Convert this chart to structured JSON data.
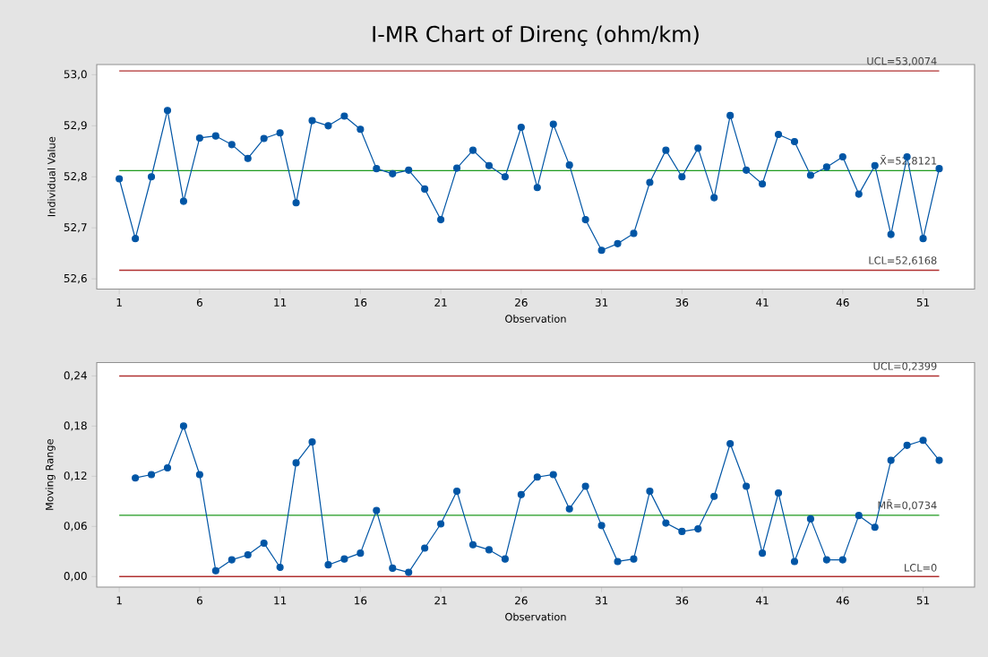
{
  "chart_data": [
    {
      "type": "line",
      "title": "I-MR Chart of Direnç (ohm/km)",
      "xlabel": "Observation",
      "ylabel": "Individual Value",
      "color": "#0055a5",
      "marker": "circle",
      "x": [
        1,
        2,
        3,
        4,
        5,
        6,
        7,
        8,
        9,
        10,
        11,
        12,
        13,
        14,
        15,
        16,
        17,
        18,
        19,
        20,
        21,
        22,
        23,
        24,
        25,
        26,
        27,
        28,
        29,
        30,
        31,
        32,
        33,
        34,
        35,
        36,
        37,
        38,
        39,
        40,
        41,
        42,
        43,
        44,
        45,
        46,
        47,
        48,
        49,
        50,
        51,
        52
      ],
      "values": [
        52.796,
        52.679,
        52.8,
        52.93,
        52.752,
        52.876,
        52.88,
        52.863,
        52.836,
        52.875,
        52.886,
        52.749,
        52.91,
        52.9,
        52.919,
        52.893,
        52.816,
        52.806,
        52.813,
        52.776,
        52.716,
        52.817,
        52.852,
        52.822,
        52.8,
        52.897,
        52.779,
        52.903,
        52.823,
        52.716,
        52.656,
        52.669,
        52.689,
        52.789,
        52.852,
        52.8,
        52.856,
        52.759,
        52.92,
        52.813,
        52.786,
        52.883,
        52.869,
        52.803,
        52.819,
        52.839,
        52.766,
        52.822,
        52.687,
        52.839,
        52.679,
        52.816
      ],
      "xlim": [
        -0.4,
        54.2
      ],
      "ylim": [
        52.58,
        53.02
      ],
      "xticks": [
        1,
        6,
        11,
        16,
        21,
        26,
        31,
        36,
        41,
        46,
        51
      ],
      "yticks": [
        {
          "value": 52.6,
          "label": "52,6"
        },
        {
          "value": 52.7,
          "label": "52,7"
        },
        {
          "value": 52.8,
          "label": "52,8"
        },
        {
          "value": 52.9,
          "label": "52,9"
        },
        {
          "value": 53.0,
          "label": "53,0"
        }
      ],
      "ref_lines": [
        {
          "axis": "y",
          "value": 53.0074,
          "label": "UCL=53,0074",
          "color": "#b03030"
        },
        {
          "axis": "y",
          "value": 52.8121,
          "label": "X̄=52,8121",
          "color": "#1e9a1e"
        },
        {
          "axis": "y",
          "value": 52.6168,
          "label": "LCL=52,6168",
          "color": "#b03030"
        }
      ]
    },
    {
      "type": "line",
      "xlabel": "Observation",
      "ylabel": "Moving Range",
      "color": "#0055a5",
      "marker": "circle",
      "x": [
        2,
        3,
        4,
        5,
        6,
        7,
        8,
        9,
        10,
        11,
        12,
        13,
        14,
        15,
        16,
        17,
        18,
        19,
        20,
        21,
        22,
        23,
        24,
        25,
        26,
        27,
        28,
        29,
        30,
        31,
        32,
        33,
        34,
        35,
        36,
        37,
        38,
        39,
        40,
        41,
        42,
        43,
        44,
        45,
        46,
        47,
        48,
        49,
        50,
        51,
        52
      ],
      "values": [
        0.118,
        0.122,
        0.13,
        0.18,
        0.122,
        0.007,
        0.02,
        0.026,
        0.04,
        0.011,
        0.136,
        0.161,
        0.014,
        0.021,
        0.028,
        0.079,
        0.01,
        0.005,
        0.034,
        0.063,
        0.102,
        0.038,
        0.032,
        0.021,
        0.098,
        0.119,
        0.122,
        0.081,
        0.108,
        0.061,
        0.018,
        0.021,
        0.102,
        0.064,
        0.054,
        0.057,
        0.096,
        0.159,
        0.108,
        0.028,
        0.1,
        0.018,
        0.069,
        0.02,
        0.02,
        0.073,
        0.059,
        0.139,
        0.157,
        0.163,
        0.139
      ],
      "xlim": [
        -0.4,
        54.2
      ],
      "ylim": [
        -0.0126,
        0.256
      ],
      "xticks": [
        1,
        6,
        11,
        16,
        21,
        26,
        31,
        36,
        41,
        46,
        51
      ],
      "yticks": [
        {
          "value": 0,
          "label": "0,00"
        },
        {
          "value": 0.06,
          "label": "0,06"
        },
        {
          "value": 0.12,
          "label": "0,12"
        },
        {
          "value": 0.18,
          "label": "0,18"
        },
        {
          "value": 0.24,
          "label": "0,24"
        }
      ],
      "ref_lines": [
        {
          "axis": "y",
          "value": 0.2399,
          "label": "UCL=0,2399",
          "color": "#b03030"
        },
        {
          "axis": "y",
          "value": 0.0734,
          "label": "MR̄=0,0734",
          "color": "#1e9a1e"
        },
        {
          "axis": "y",
          "value": 0,
          "label": "LCL=0",
          "color": "#b03030"
        }
      ]
    }
  ]
}
